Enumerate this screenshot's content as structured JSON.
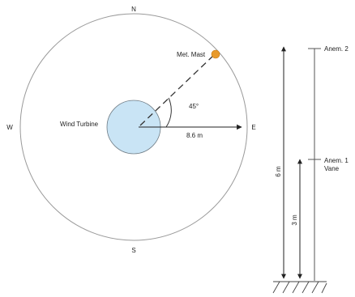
{
  "compass": {
    "north": "N",
    "south": "S",
    "east": "E",
    "west": "W"
  },
  "plan_view": {
    "turbine_label": "Wind Turbine",
    "mast_label": "Met. Mast",
    "angle_label": "45°",
    "distance_label": "8.6 m"
  },
  "elevation_view": {
    "anem2_label": "Anem. 2",
    "anem1_label": "Anem. 1",
    "vane_label": "Vane",
    "height_total_label": "6 m",
    "height_lower_label": "3 m"
  },
  "colors": {
    "turbine_fill": "#c9e4f5",
    "mast_fill": "#e89a2c",
    "line": "#333333",
    "circle_stroke": "#999999"
  }
}
